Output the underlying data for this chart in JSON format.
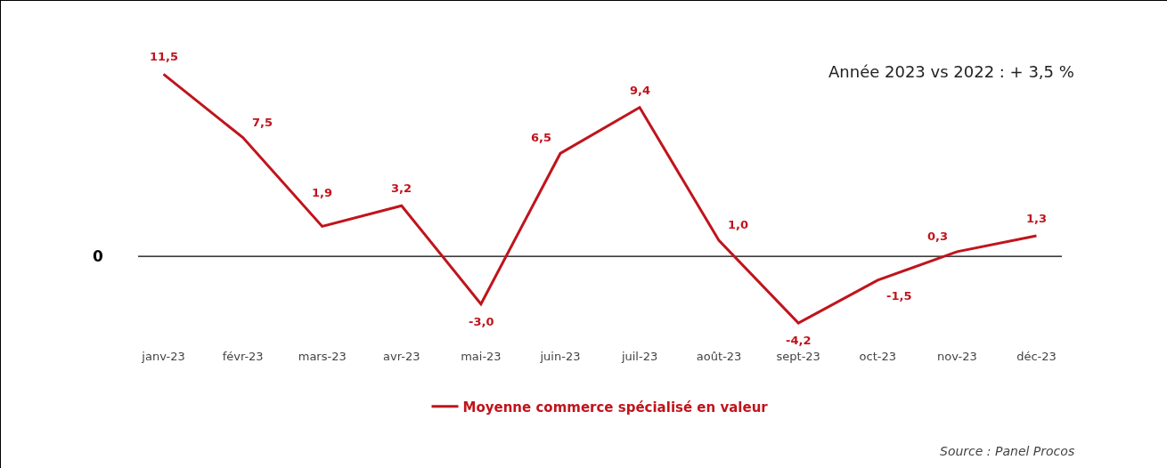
{
  "chart_data": {
    "type": "line",
    "categories": [
      "janv-23",
      "févr-23",
      "mars-23",
      "avr-23",
      "mai-23",
      "juin-23",
      "juil-23",
      "août-23",
      "sept-23",
      "oct-23",
      "nov-23",
      "déc-23"
    ],
    "series": [
      {
        "name": "Moyenne commerce spécialisé en valeur",
        "color": "#c0141c",
        "values": [
          11.5,
          7.5,
          1.9,
          3.2,
          -3.0,
          6.5,
          9.4,
          1.0,
          -4.2,
          -1.5,
          0.3,
          1.3
        ],
        "value_labels": [
          "11,5",
          "7,5",
          "1,9",
          "3,2",
          "-3,0",
          "6,5",
          "9,4",
          "1,0",
          "-4,2",
          "-1,5",
          "0,3",
          "1,3"
        ]
      }
    ],
    "ref_lines": [
      {
        "axis": "y",
        "value": 0,
        "label": "0",
        "color": "#000000"
      }
    ],
    "grid": false,
    "legend": "bottom",
    "marker": "none",
    "line_style": "solid",
    "tick_labels": "x",
    "annotations": [
      "Année 2023 vs 2022 : + 3,5 %",
      "Source : Panel Procos"
    ]
  }
}
